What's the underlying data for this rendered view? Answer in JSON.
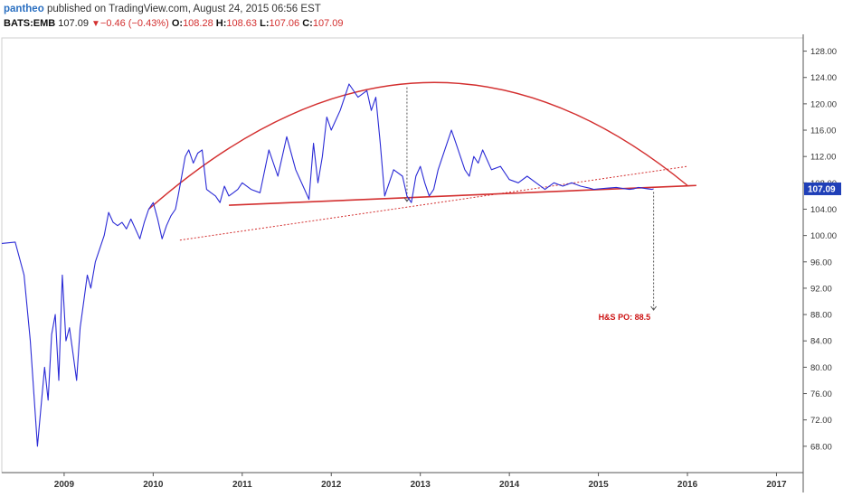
{
  "header": {
    "author": "pantheo",
    "published_text": "published on TradingView.com, August 24, 2015 06:56 EST"
  },
  "quote": {
    "symbol": "BATS:EMB",
    "last": "107.09",
    "change": "−0.46 (−0.43%)",
    "open_label": "O:",
    "open": "108.28",
    "high_label": "H:",
    "high": "108.63",
    "low_label": "L:",
    "low": "107.06",
    "close_label": "C:",
    "close": "107.09"
  },
  "colors": {
    "price_line": "#2b2bd6",
    "pattern": "#d32f2f",
    "label_bg": "#1f3fb8",
    "axis": "#555555"
  },
  "chart_data": {
    "type": "line",
    "series": [
      {
        "x": [
          2008.3,
          2008.45,
          2008.55,
          2008.62,
          2008.7,
          2008.78,
          2008.82,
          2008.86,
          2008.9,
          2008.94,
          2008.98,
          2009.02,
          2009.06,
          2009.1,
          2009.14,
          2009.18,
          2009.22,
          2009.26,
          2009.3,
          2009.35,
          2009.4,
          2009.45,
          2009.5,
          2009.55,
          2009.6,
          2009.65,
          2009.7,
          2009.75,
          2009.8,
          2009.85,
          2009.9,
          2009.95,
          2010.0,
          2010.05,
          2010.1,
          2010.15,
          2010.2,
          2010.25,
          2010.28,
          2010.32,
          2010.36,
          2010.4,
          2010.45,
          2010.5,
          2010.55,
          2010.6,
          2010.65,
          2010.7,
          2010.75,
          2010.8,
          2010.85,
          2010.9,
          2010.95,
          2011.0,
          2011.1,
          2011.2,
          2011.3,
          2011.4,
          2011.5,
          2011.6,
          2011.7,
          2011.75,
          2011.8,
          2011.85,
          2011.9,
          2011.95,
          2012.0,
          2012.1,
          2012.2,
          2012.3,
          2012.4,
          2012.45,
          2012.5,
          2012.55,
          2012.6,
          2012.7,
          2012.8,
          2012.85,
          2012.9,
          2012.95,
          2013.0,
          2013.05,
          2013.1,
          2013.15,
          2013.2,
          2013.25,
          2013.3,
          2013.35,
          2013.4,
          2013.45,
          2013.5,
          2013.55,
          2013.6,
          2013.65,
          2013.7,
          2013.8,
          2013.9,
          2014.0,
          2014.1,
          2014.2,
          2014.3,
          2014.4,
          2014.5,
          2014.6,
          2014.7,
          2014.8,
          2014.9,
          2014.95,
          2015.0,
          2015.1,
          2015.2,
          2015.25,
          2015.3,
          2015.35,
          2015.4,
          2015.45,
          2015.5,
          2015.55,
          2015.6,
          2015.62
        ],
        "y": [
          98.8,
          99.0,
          94.0,
          84.0,
          68.0,
          80.0,
          75.0,
          85.0,
          88.0,
          78.0,
          94.0,
          84.0,
          86.0,
          82.0,
          78.0,
          86.0,
          90.0,
          94.0,
          92.0,
          96.0,
          98.0,
          100.0,
          103.5,
          102.0,
          101.5,
          102.0,
          101.0,
          102.5,
          101.0,
          99.5,
          102.0,
          104.0,
          105.0,
          102.5,
          99.5,
          101.5,
          103.0,
          104.0,
          106.0,
          109.0,
          112.0,
          113.0,
          111.0,
          112.5,
          113.0,
          107.0,
          106.5,
          106.0,
          105.0,
          107.5,
          106.0,
          106.5,
          107.0,
          108.0,
          107.0,
          106.5,
          113.0,
          109.0,
          115.0,
          110.0,
          107.0,
          105.5,
          114.0,
          108.0,
          112.0,
          118.0,
          116.0,
          119.0,
          123.0,
          121.0,
          122.0,
          119.0,
          121.0,
          114.0,
          106.0,
          110.0,
          109.0,
          106.0,
          105.0,
          109.0,
          110.5,
          108.0,
          106.0,
          107.0,
          110.0,
          112.0,
          114.0,
          116.0,
          114.0,
          112.0,
          110.0,
          109.0,
          112.0,
          111.0,
          113.0,
          110.0,
          110.5,
          108.5,
          108.0,
          109.0,
          108.0,
          107.0,
          108.0,
          107.5,
          108.0,
          107.5,
          107.2,
          107.0,
          107.09,
          107.2,
          107.3,
          107.2,
          107.1,
          107.0,
          107.1,
          107.3,
          107.2,
          107.1,
          107.0,
          107.09
        ],
        "color": "#2b2bd6"
      }
    ],
    "xlim": [
      2008.3,
      2017.3
    ],
    "ylim": [
      64.0,
      130.0
    ],
    "x_ticks": [
      "2009",
      "2010",
      "2011",
      "2012",
      "2013",
      "2014",
      "2015",
      "2016",
      "2017"
    ],
    "y_ticks": [
      "128.00",
      "124.00",
      "120.00",
      "116.00",
      "112.00",
      "108.00",
      "104.00",
      "100.00",
      "96.00",
      "92.00",
      "88.00",
      "84.00",
      "80.00",
      "76.00",
      "72.00",
      "68.00"
    ],
    "last_price_label": "107.09",
    "annotations": [
      {
        "text": "H&S PO: 88.5"
      }
    ]
  }
}
